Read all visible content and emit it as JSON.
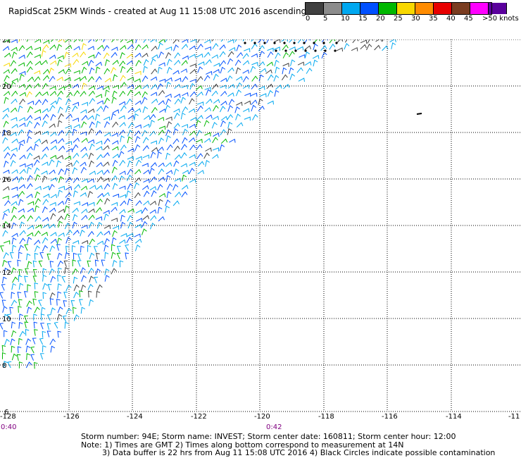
{
  "title": "RapidScat 25KM Winds - created at Aug 11 15:08 UTC 2016 ascending",
  "colorbar": {
    "colors": [
      "#404040",
      "#8c8c8c",
      "#00a8f0",
      "#0050ff",
      "#00b800",
      "#f8d800",
      "#ff8c00",
      "#e80000",
      "#7a3c20",
      "#ff00ff",
      "#5a009c"
    ],
    "labels": [
      "0",
      "5",
      "10",
      "15",
      "20",
      "25",
      "30",
      "35",
      "40",
      "45",
      ">50 knots"
    ]
  },
  "axes": {
    "x_ticks": [
      "-128",
      "-126",
      "-124",
      "-122",
      "-120",
      "-118",
      "-116",
      "-114",
      "-11"
    ],
    "y_ticks": [
      "22",
      "20",
      "18",
      "16",
      "14",
      "12",
      "10",
      "8",
      "6"
    ]
  },
  "time_labels": [
    "0:40",
    "0:42"
  ],
  "marker": "Black Circles",
  "footer": {
    "line1": "Storm number: 94E;  Storm name: INVEST;  Storm center date: 160811;  Storm center hour: 12:00",
    "line2": "Note: 1) Times are GMT  2) Times along bottom correspond to measurement at 14N",
    "line3": "3) Data buffer is 22 hrs from Aug 11 15:08 UTC 2016  4) Black Circles indicate possible contamination"
  }
}
